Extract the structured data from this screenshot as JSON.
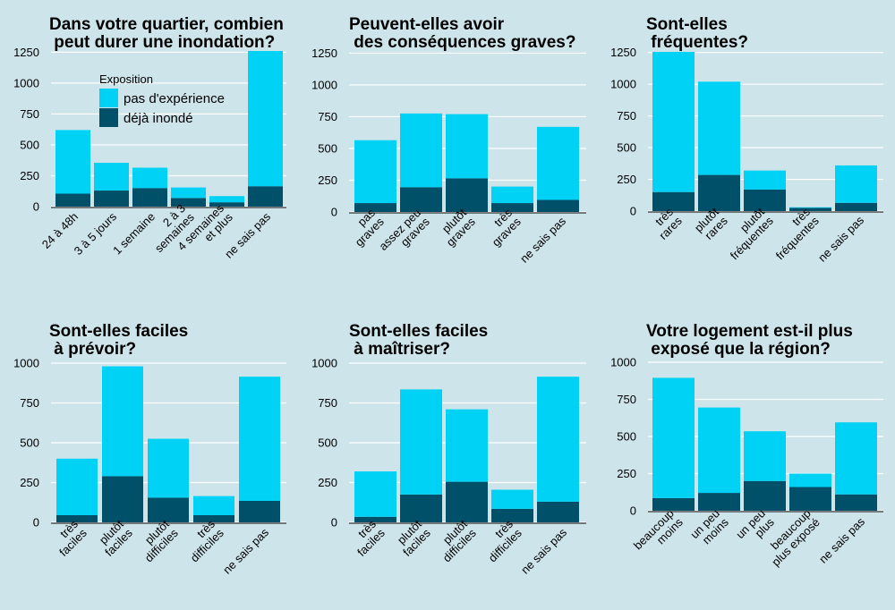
{
  "colors": {
    "background": "#cde4ea",
    "no_experience": "#00d2f5",
    "flooded": "#00506a",
    "grid": "#ffffff",
    "axis": "#000000"
  },
  "legend": {
    "title": "Exposition",
    "items": [
      "pas d'expérience",
      "déjà inondé"
    ]
  },
  "chart_data": [
    {
      "type": "bar",
      "stacked": true,
      "title": [
        "Dans votre quartier, combien",
        " peut durer une inondation?"
      ],
      "categories": [
        [
          "24 à 48h"
        ],
        [
          "3 à 5 jours"
        ],
        [
          "1 semaine"
        ],
        [
          "2 à 3",
          "semaines"
        ],
        [
          "4 semaines",
          "et plus"
        ],
        [
          "ne sais pas"
        ]
      ],
      "series": [
        {
          "name": "déjà inondé",
          "values": [
            105,
            130,
            150,
            70,
            35,
            165
          ]
        },
        {
          "name": "pas d'expérience",
          "values": [
            515,
            225,
            165,
            85,
            50,
            1095
          ]
        }
      ],
      "yticks": [
        0,
        250,
        500,
        750,
        1000,
        1250
      ],
      "ylim": [
        0,
        1260
      ]
    },
    {
      "type": "bar",
      "stacked": true,
      "title": [
        "Peuvent-elles avoir",
        " des conséquences graves?"
      ],
      "categories": [
        [
          "pas",
          "graves"
        ],
        [
          "assez peu",
          "graves"
        ],
        [
          "plutôt",
          "graves"
        ],
        [
          "très",
          "graves"
        ],
        [
          "ne sais pas"
        ]
      ],
      "series": [
        {
          "name": "déjà inondé",
          "values": [
            70,
            195,
            265,
            70,
            95
          ]
        },
        {
          "name": "pas d'expérience",
          "values": [
            495,
            580,
            505,
            130,
            575
          ]
        }
      ],
      "yticks": [
        0,
        250,
        500,
        750,
        1000,
        1250
      ],
      "ylim": [
        0,
        1260
      ]
    },
    {
      "type": "bar",
      "stacked": true,
      "title": [
        "Sont-elles",
        " fréquentes?"
      ],
      "categories": [
        [
          "très",
          "rares"
        ],
        [
          "plutôt",
          "rares"
        ],
        [
          "plutôt",
          "fréquentes"
        ],
        [
          "très",
          "fréquentes"
        ],
        [
          "ne sais pas"
        ]
      ],
      "series": [
        {
          "name": "déjà inondé",
          "values": [
            150,
            285,
            170,
            25,
            65
          ]
        },
        {
          "name": "pas d'expérience",
          "values": [
            1105,
            735,
            150,
            5,
            295
          ]
        }
      ],
      "yticks": [
        0,
        250,
        500,
        750,
        1000,
        1250
      ],
      "ylim": [
        0,
        1255
      ]
    },
    {
      "type": "bar",
      "stacked": true,
      "title": [
        "Sont-elles faciles",
        " à prévoir?"
      ],
      "categories": [
        [
          "très",
          "faciles"
        ],
        [
          "plutôt",
          "faciles"
        ],
        [
          "plutôt",
          "difficiles"
        ],
        [
          "très",
          "difficiles"
        ],
        [
          "ne sais pas"
        ]
      ],
      "series": [
        {
          "name": "déjà inondé",
          "values": [
            45,
            290,
            155,
            45,
            135
          ]
        },
        {
          "name": "pas d'expérience",
          "values": [
            355,
            690,
            370,
            120,
            780
          ]
        }
      ],
      "yticks": [
        0,
        250,
        500,
        750,
        1000
      ],
      "ylim": [
        0,
        1000
      ]
    },
    {
      "type": "bar",
      "stacked": true,
      "title": [
        "Sont-elles faciles",
        " à maîtriser?"
      ],
      "categories": [
        [
          "très",
          "faciles"
        ],
        [
          "plutôt",
          "faciles"
        ],
        [
          "plutôt",
          "difficiles"
        ],
        [
          "très",
          "difficiles"
        ],
        [
          "ne sais pas"
        ]
      ],
      "series": [
        {
          "name": "déjà inondé",
          "values": [
            35,
            175,
            255,
            85,
            130
          ]
        },
        {
          "name": "pas d'expérience",
          "values": [
            285,
            660,
            455,
            120,
            785
          ]
        }
      ],
      "yticks": [
        0,
        250,
        500,
        750,
        1000
      ],
      "ylim": [
        0,
        1000
      ]
    },
    {
      "type": "bar",
      "stacked": true,
      "title": [
        "Votre logement est-il plus",
        " exposé que la région?"
      ],
      "categories": [
        [
          "beaucoup",
          "moins"
        ],
        [
          "un peu",
          "moins"
        ],
        [
          "un peu",
          "plus"
        ],
        [
          "beaucoup",
          "plus exposé"
        ],
        [
          "ne sais pas"
        ]
      ],
      "series": [
        {
          "name": "déjà inondé",
          "values": [
            85,
            120,
            200,
            160,
            110
          ]
        },
        {
          "name": "pas d'expérience",
          "values": [
            810,
            575,
            335,
            90,
            485
          ]
        }
      ],
      "yticks": [
        0,
        250,
        500,
        750,
        1000
      ],
      "ylim": [
        0,
        1000
      ]
    }
  ]
}
